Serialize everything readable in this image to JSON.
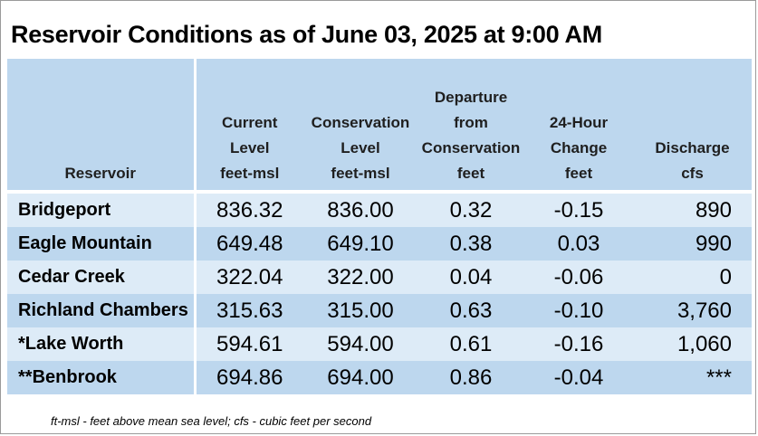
{
  "title": "Reservoir Conditions as of June 03, 2025 at 9:00 AM",
  "columns": [
    {
      "lines": [
        "Reservoir"
      ]
    },
    {
      "lines": [
        "Current",
        "Level",
        "feet-msl"
      ]
    },
    {
      "lines": [
        "Conservation",
        "Level",
        "feet-msl"
      ]
    },
    {
      "lines": [
        "Departure",
        "from",
        "Conservation",
        "feet"
      ]
    },
    {
      "lines": [
        "24-Hour",
        "Change",
        "feet"
      ]
    },
    {
      "lines": [
        "Discharge",
        "cfs"
      ]
    }
  ],
  "rows": [
    [
      "Bridgeport",
      "836.32",
      "836.00",
      "0.32",
      "-0.15",
      "890"
    ],
    [
      "Eagle Mountain",
      "649.48",
      "649.10",
      "0.38",
      "0.03",
      "990"
    ],
    [
      "Cedar Creek",
      "322.04",
      "322.00",
      "0.04",
      "-0.06",
      "0"
    ],
    [
      "Richland Chambers",
      "315.63",
      "315.00",
      "0.63",
      "-0.10",
      "3,760"
    ],
    [
      "*Lake Worth",
      "594.61",
      "594.00",
      "0.61",
      "-0.16",
      "1,060"
    ],
    [
      "**Benbrook",
      "694.86",
      "694.00",
      "0.86",
      "-0.04",
      "***"
    ]
  ],
  "footnote": "ft-msl - feet above mean sea level; cfs - cubic feet per second",
  "colors": {
    "header_bg": "#bdd7ee",
    "row_light": "#ddebf7",
    "row_dark": "#bdd7ee"
  }
}
